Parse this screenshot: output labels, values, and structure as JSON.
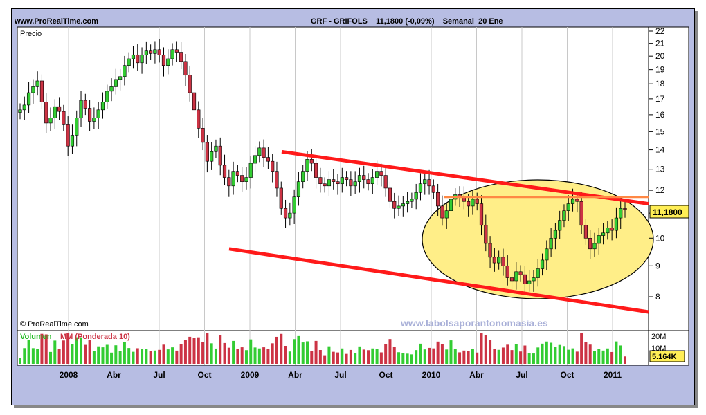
{
  "header": {
    "source": "www.ProRealTime.com",
    "title": "GRF - GRIFOLS    11,1800 (-0,09%)    Semanal  20 Ene"
  },
  "price_panel": {
    "label": "Precio",
    "copyright": "© ProRealTime.com",
    "watermark": "www.labolsaporantonomasia.es",
    "last_value": "11,1800"
  },
  "volume_panel": {
    "label_volume": "Volumen",
    "label_mm": "MM (Ponderada 10)",
    "last_value": "5.164K",
    "axis_ticks": [
      "20M",
      "10M"
    ]
  },
  "x_labels": [
    "2008",
    "Abr",
    "Jul",
    "Oct",
    "2009",
    "Abr",
    "Jul",
    "Oct",
    "2010",
    "Abr",
    "Jul",
    "Oct",
    "2011"
  ],
  "y_labels": [
    "22",
    "21",
    "20",
    "19",
    "18",
    "17",
    "16",
    "15",
    "14",
    "13",
    "12",
    "11",
    "10",
    "9",
    "8"
  ],
  "colors": {
    "up": "#33cc33",
    "down": "#cc3344",
    "channel": "#ff1a1a",
    "resistance": "#ff8844",
    "ellipse_fill": "#ffee88",
    "background": "#b7bde3"
  },
  "chart_data": {
    "type": "candlestick",
    "title": "GRF - GRIFOLS 11,1800 (-0,09%) Semanal 20 Ene",
    "scale": "log",
    "ylim": [
      7.5,
      22.5
    ],
    "x_range": [
      "2008-01",
      "2011-01"
    ],
    "series": [
      {
        "name": "Precio",
        "close": [
          16.3,
          16.6,
          17.4,
          17.8,
          18.2,
          16.8,
          15.5,
          15.8,
          16.5,
          16.2,
          15.4,
          14.2,
          14.8,
          15.8,
          16.9,
          16.4,
          15.6,
          15.8,
          16.3,
          16.8,
          17.5,
          17.8,
          18.3,
          18.5,
          19.3,
          19.8,
          20.1,
          19.5,
          20.1,
          20.4,
          20.2,
          20.5,
          20.1,
          19.3,
          19.8,
          20.5,
          20.3,
          19.6,
          18.6,
          17.4,
          16.3,
          15.2,
          14.4,
          13.4,
          13.9,
          14.2,
          13.2,
          12.6,
          12.2,
          12.9,
          12.7,
          12.4,
          12.6,
          13.3,
          13.7,
          14.1,
          13.6,
          13.4,
          12.9,
          12.1,
          11.2,
          10.8,
          11.0,
          11.7,
          12.4,
          12.9,
          13.5,
          13.3,
          12.6,
          12.3,
          12.2,
          12.5,
          12.4,
          12.3,
          12.6,
          12.5,
          12.2,
          12.4,
          12.7,
          12.5,
          12.3,
          12.6,
          12.9,
          12.7,
          12.1,
          11.5,
          11.2,
          11.3,
          11.4,
          11.5,
          11.6,
          11.9,
          12.3,
          12.5,
          12.2,
          11.9,
          11.3,
          10.8,
          11.1,
          11.6,
          11.8,
          11.7,
          11.5,
          11.3,
          11.6,
          11.4,
          10.5,
          9.8,
          9.3,
          9.1,
          9.3,
          9.0,
          8.6,
          8.5,
          8.8,
          8.7,
          8.4,
          8.5,
          8.6,
          8.9,
          9.2,
          9.6,
          10.0,
          10.3,
          10.7,
          11.1,
          11.4,
          11.6,
          11.5,
          10.5,
          10.0,
          9.6,
          9.8,
          10.1,
          10.2,
          10.4,
          10.3,
          10.8,
          11.2,
          11.18
        ]
      }
    ],
    "annotations": {
      "upper_channel": [
        [
          "2009-03",
          13.9
        ],
        [
          "2011-01",
          11.4
        ]
      ],
      "lower_channel": [
        [
          "2008-11",
          9.6
        ],
        [
          "2011-01",
          7.5
        ]
      ],
      "resistance": 11.7
    }
  }
}
